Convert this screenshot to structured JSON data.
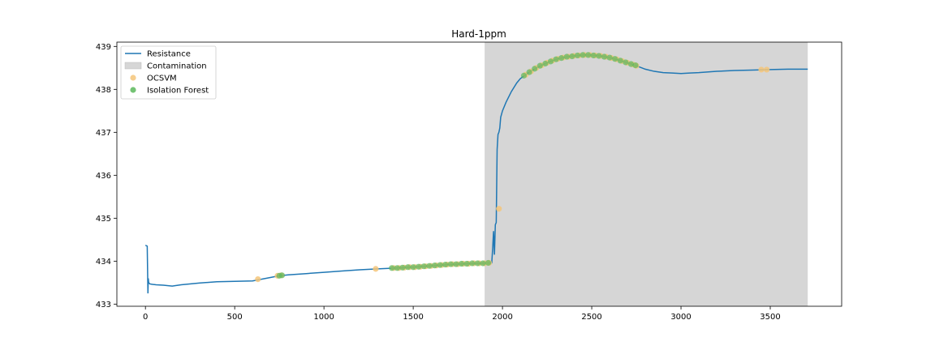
{
  "chart_data": {
    "type": "line",
    "title": "Hard-1ppm",
    "xlabel": "",
    "ylabel": "",
    "xlim": [
      -160,
      3900
    ],
    "ylim": [
      432.95,
      439.1
    ],
    "x_ticks": [
      0,
      500,
      1000,
      1500,
      2000,
      2500,
      3000,
      3500
    ],
    "y_ticks": [
      433,
      434,
      435,
      436,
      437,
      438,
      439
    ],
    "x_tick_labels": [
      "0",
      "500",
      "1000",
      "1500",
      "2000",
      "2500",
      "3000",
      "3500"
    ],
    "y_tick_labels": [
      "433",
      "434",
      "435",
      "436",
      "437",
      "438",
      "439"
    ],
    "grid": false,
    "legend_position": "top-left",
    "legend": [
      {
        "label": "Resistance",
        "kind": "line",
        "color": "#1f77b4"
      },
      {
        "label": "Contamination",
        "kind": "patch",
        "color": "#d6d6d6"
      },
      {
        "label": "OCSVM",
        "kind": "marker",
        "color": "#f5c57a"
      },
      {
        "label": "Isolation Forest",
        "kind": "marker",
        "color": "#5cb85c"
      }
    ],
    "contamination_range": [
      1900,
      3710
    ],
    "series": [
      {
        "name": "Resistance",
        "color": "#1f77b4",
        "points": [
          [
            0,
            434.37
          ],
          [
            5,
            434.36
          ],
          [
            10,
            434.35
          ],
          [
            12,
            433.8
          ],
          [
            14,
            433.25
          ],
          [
            16,
            433.6
          ],
          [
            18,
            433.5
          ],
          [
            25,
            433.47
          ],
          [
            40,
            433.46
          ],
          [
            60,
            433.45
          ],
          [
            100,
            433.44
          ],
          [
            150,
            433.42
          ],
          [
            200,
            433.45
          ],
          [
            300,
            433.49
          ],
          [
            400,
            433.52
          ],
          [
            500,
            433.53
          ],
          [
            600,
            433.54
          ],
          [
            700,
            433.62
          ],
          [
            750,
            433.66
          ],
          [
            800,
            433.68
          ],
          [
            900,
            433.71
          ],
          [
            1000,
            433.74
          ],
          [
            1100,
            433.77
          ],
          [
            1200,
            433.8
          ],
          [
            1300,
            433.82
          ],
          [
            1400,
            433.84
          ],
          [
            1500,
            433.86
          ],
          [
            1600,
            433.89
          ],
          [
            1700,
            433.92
          ],
          [
            1800,
            433.94
          ],
          [
            1880,
            433.95
          ],
          [
            1940,
            433.96
          ],
          [
            1945,
            434.3
          ],
          [
            1950,
            434.7
          ],
          [
            1955,
            434.15
          ],
          [
            1960,
            434.85
          ],
          [
            1965,
            434.9
          ],
          [
            1970,
            436.6
          ],
          [
            1975,
            436.95
          ],
          [
            1980,
            437.0
          ],
          [
            1985,
            437.1
          ],
          [
            1990,
            437.35
          ],
          [
            2000,
            437.5
          ],
          [
            2020,
            437.7
          ],
          [
            2050,
            437.95
          ],
          [
            2080,
            438.15
          ],
          [
            2100,
            438.25
          ],
          [
            2150,
            438.4
          ],
          [
            2200,
            438.52
          ],
          [
            2250,
            438.62
          ],
          [
            2300,
            438.7
          ],
          [
            2350,
            438.75
          ],
          [
            2400,
            438.78
          ],
          [
            2450,
            438.8
          ],
          [
            2500,
            438.8
          ],
          [
            2550,
            438.78
          ],
          [
            2600,
            438.74
          ],
          [
            2650,
            438.68
          ],
          [
            2700,
            438.62
          ],
          [
            2750,
            438.55
          ],
          [
            2800,
            438.47
          ],
          [
            2850,
            438.42
          ],
          [
            2900,
            438.39
          ],
          [
            2950,
            438.38
          ],
          [
            3000,
            438.37
          ],
          [
            3050,
            438.38
          ],
          [
            3100,
            438.39
          ],
          [
            3200,
            438.42
          ],
          [
            3300,
            438.44
          ],
          [
            3400,
            438.45
          ],
          [
            3500,
            438.46
          ],
          [
            3600,
            438.47
          ],
          [
            3710,
            438.47
          ]
        ]
      }
    ],
    "ocsvm_points": [
      [
        630,
        433.58
      ],
      [
        740,
        433.66
      ],
      [
        760,
        433.67
      ],
      [
        1290,
        433.82
      ],
      [
        1390,
        433.84
      ],
      [
        1420,
        433.84
      ],
      [
        1450,
        433.85
      ],
      [
        1480,
        433.86
      ],
      [
        1510,
        433.86
      ],
      [
        1540,
        433.87
      ],
      [
        1570,
        433.88
      ],
      [
        1600,
        433.89
      ],
      [
        1630,
        433.9
      ],
      [
        1660,
        433.91
      ],
      [
        1690,
        433.92
      ],
      [
        1720,
        433.93
      ],
      [
        1750,
        433.93
      ],
      [
        1780,
        433.94
      ],
      [
        1810,
        433.94
      ],
      [
        1840,
        433.95
      ],
      [
        1870,
        433.95
      ],
      [
        1900,
        433.95
      ],
      [
        1925,
        433.96
      ],
      [
        1980,
        435.22
      ],
      [
        2130,
        438.34
      ],
      [
        2160,
        438.42
      ],
      [
        2190,
        438.5
      ],
      [
        2220,
        438.56
      ],
      [
        2250,
        438.62
      ],
      [
        2280,
        438.67
      ],
      [
        2310,
        438.71
      ],
      [
        2340,
        438.74
      ],
      [
        2370,
        438.76
      ],
      [
        2400,
        438.78
      ],
      [
        2430,
        438.79
      ],
      [
        2460,
        438.8
      ],
      [
        2490,
        438.8
      ],
      [
        2520,
        438.79
      ],
      [
        2550,
        438.78
      ],
      [
        2580,
        438.76
      ],
      [
        2610,
        438.73
      ],
      [
        2640,
        438.7
      ],
      [
        2670,
        438.66
      ],
      [
        2700,
        438.62
      ],
      [
        2730,
        438.58
      ],
      [
        2750,
        438.55
      ],
      [
        3450,
        438.46
      ],
      [
        3480,
        438.46
      ]
    ],
    "isolation_forest_points": [
      [
        750,
        433.66
      ],
      [
        765,
        433.67
      ],
      [
        1380,
        433.84
      ],
      [
        1410,
        433.84
      ],
      [
        1440,
        433.85
      ],
      [
        1470,
        433.86
      ],
      [
        1500,
        433.86
      ],
      [
        1530,
        433.87
      ],
      [
        1560,
        433.88
      ],
      [
        1590,
        433.89
      ],
      [
        1620,
        433.9
      ],
      [
        1650,
        433.91
      ],
      [
        1680,
        433.92
      ],
      [
        1710,
        433.93
      ],
      [
        1740,
        433.93
      ],
      [
        1770,
        433.94
      ],
      [
        1800,
        433.94
      ],
      [
        1830,
        433.95
      ],
      [
        1860,
        433.95
      ],
      [
        1890,
        433.95
      ],
      [
        1920,
        433.96
      ],
      [
        2120,
        438.32
      ],
      [
        2150,
        438.4
      ],
      [
        2180,
        438.48
      ],
      [
        2210,
        438.55
      ],
      [
        2240,
        438.6
      ],
      [
        2270,
        438.65
      ],
      [
        2300,
        438.7
      ],
      [
        2330,
        438.73
      ],
      [
        2360,
        438.76
      ],
      [
        2390,
        438.77
      ],
      [
        2420,
        438.79
      ],
      [
        2450,
        438.8
      ],
      [
        2480,
        438.8
      ],
      [
        2510,
        438.79
      ],
      [
        2540,
        438.78
      ],
      [
        2570,
        438.76
      ],
      [
        2600,
        438.74
      ],
      [
        2630,
        438.71
      ],
      [
        2660,
        438.67
      ],
      [
        2690,
        438.63
      ],
      [
        2720,
        438.59
      ],
      [
        2745,
        438.56
      ]
    ]
  }
}
